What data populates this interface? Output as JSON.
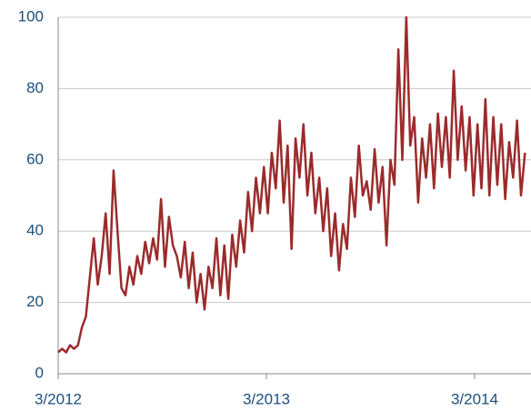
{
  "chart_data": {
    "type": "line",
    "x": [
      2012.167,
      2012.186,
      2012.205,
      2012.224,
      2012.243,
      2012.262,
      2012.281,
      2012.3,
      2012.319,
      2012.338,
      2012.357,
      2012.376,
      2012.395,
      2012.414,
      2012.433,
      2012.452,
      2012.471,
      2012.49,
      2012.509,
      2012.528,
      2012.547,
      2012.566,
      2012.585,
      2012.604,
      2012.623,
      2012.642,
      2012.661,
      2012.68,
      2012.699,
      2012.718,
      2012.737,
      2012.756,
      2012.775,
      2012.794,
      2012.813,
      2012.832,
      2012.851,
      2012.87,
      2012.889,
      2012.908,
      2012.927,
      2012.946,
      2012.965,
      2012.984,
      2013.003,
      2013.022,
      2013.041,
      2013.06,
      2013.079,
      2013.098,
      2013.117,
      2013.136,
      2013.155,
      2013.174,
      2013.193,
      2013.212,
      2013.231,
      2013.25,
      2013.269,
      2013.288,
      2013.307,
      2013.326,
      2013.345,
      2013.364,
      2013.383,
      2013.402,
      2013.421,
      2013.44,
      2013.459,
      2013.478,
      2013.497,
      2013.516,
      2013.535,
      2013.554,
      2013.573,
      2013.592,
      2013.611,
      2013.63,
      2013.649,
      2013.668,
      2013.687,
      2013.706,
      2013.725,
      2013.744,
      2013.763,
      2013.782,
      2013.801,
      2013.82,
      2013.839,
      2013.858,
      2013.877,
      2013.896,
      2013.915,
      2013.934,
      2013.953,
      2013.972,
      2013.991,
      2014.01,
      2014.029,
      2014.048,
      2014.067,
      2014.086,
      2014.105,
      2014.124,
      2014.143,
      2014.162,
      2014.181,
      2014.2,
      2014.219,
      2014.238,
      2014.257,
      2014.276,
      2014.295,
      2014.314,
      2014.333,
      2014.352,
      2014.371,
      2014.39,
      2014.409
    ],
    "values": [
      6,
      7,
      6,
      8,
      7,
      8,
      13,
      16,
      27,
      38,
      25,
      33,
      45,
      28,
      57,
      40,
      24,
      22,
      30,
      25,
      33,
      28,
      37,
      31,
      38,
      32,
      49,
      30,
      44,
      36,
      33,
      27,
      37,
      24,
      34,
      20,
      28,
      18,
      30,
      24,
      38,
      22,
      36,
      21,
      39,
      30,
      43,
      34,
      51,
      40,
      55,
      45,
      58,
      45,
      62,
      52,
      71,
      48,
      64,
      35,
      66,
      55,
      70,
      50,
      62,
      45,
      55,
      40,
      52,
      33,
      45,
      29,
      42,
      35,
      55,
      44,
      64,
      50,
      54,
      46,
      63,
      48,
      58,
      36,
      60,
      53,
      91,
      60,
      100,
      64,
      72,
      48,
      66,
      55,
      70,
      52,
      73,
      58,
      72,
      55,
      85,
      60,
      75,
      57,
      72,
      50,
      70,
      52,
      77,
      50,
      72,
      53,
      70,
      49,
      65,
      55,
      71,
      50,
      62
    ],
    "color": "#9b2b2b",
    "xlim": [
      2012.167,
      2014.438
    ],
    "xticks": [
      {
        "value": 2012.167,
        "label": "3/2012"
      },
      {
        "value": 2013.167,
        "label": "3/2013"
      },
      {
        "value": 2014.167,
        "label": "3/2014"
      }
    ],
    "ylim": [
      0,
      100
    ],
    "yticks": [
      0,
      20,
      40,
      60,
      80,
      100
    ],
    "grid": true
  }
}
